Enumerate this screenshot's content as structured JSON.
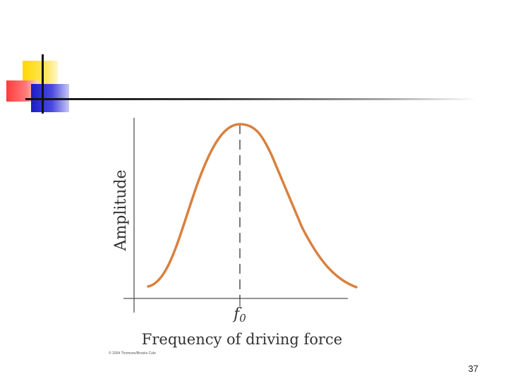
{
  "figure": {
    "ylabel": "Amplitude",
    "xlabel": "Frequency of driving force",
    "peak_label_base": "f",
    "peak_label_sub": "0",
    "credit": "© 2004 Thomson/Brooks Cole",
    "curve_color": "#d9803e"
  },
  "slide": {
    "page_number": "37"
  }
}
